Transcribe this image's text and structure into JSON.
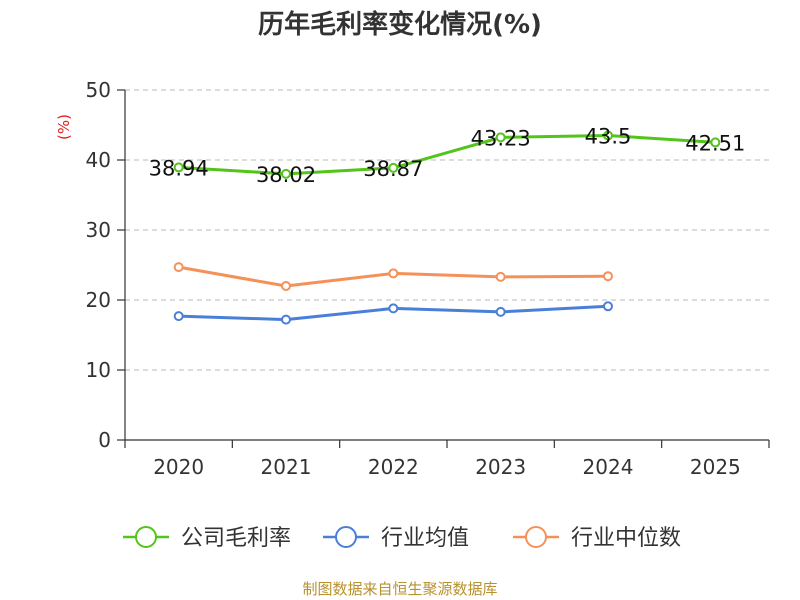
{
  "chart_data": {
    "type": "line",
    "title": "历年毛利率变化情况(%)",
    "ylabel": "(%)",
    "xlabel": "",
    "categories": [
      "2020",
      "2021",
      "2022",
      "2023",
      "2024",
      "2025"
    ],
    "ylim": [
      0,
      50
    ],
    "yticks": [
      0,
      10,
      20,
      30,
      40,
      50
    ],
    "grid": "horizontal-dashed",
    "legend_position": "bottom",
    "series": [
      {
        "name": "公司毛利率",
        "color": "#52c41a",
        "values": [
          38.94,
          38.02,
          38.87,
          43.23,
          43.5,
          42.51
        ],
        "labels": [
          "38.94",
          "38.02",
          "38.87",
          "43.23",
          "43.5",
          "42.51"
        ]
      },
      {
        "name": "行业均值",
        "color": "#4a7fd9",
        "values": [
          17.7,
          17.2,
          18.8,
          18.3,
          19.1,
          null
        ]
      },
      {
        "name": "行业中位数",
        "color": "#f59158",
        "values": [
          24.7,
          22.0,
          23.8,
          23.3,
          23.4,
          null
        ]
      }
    ]
  },
  "footer": {
    "source": "制图数据来自恒生聚源数据库"
  }
}
